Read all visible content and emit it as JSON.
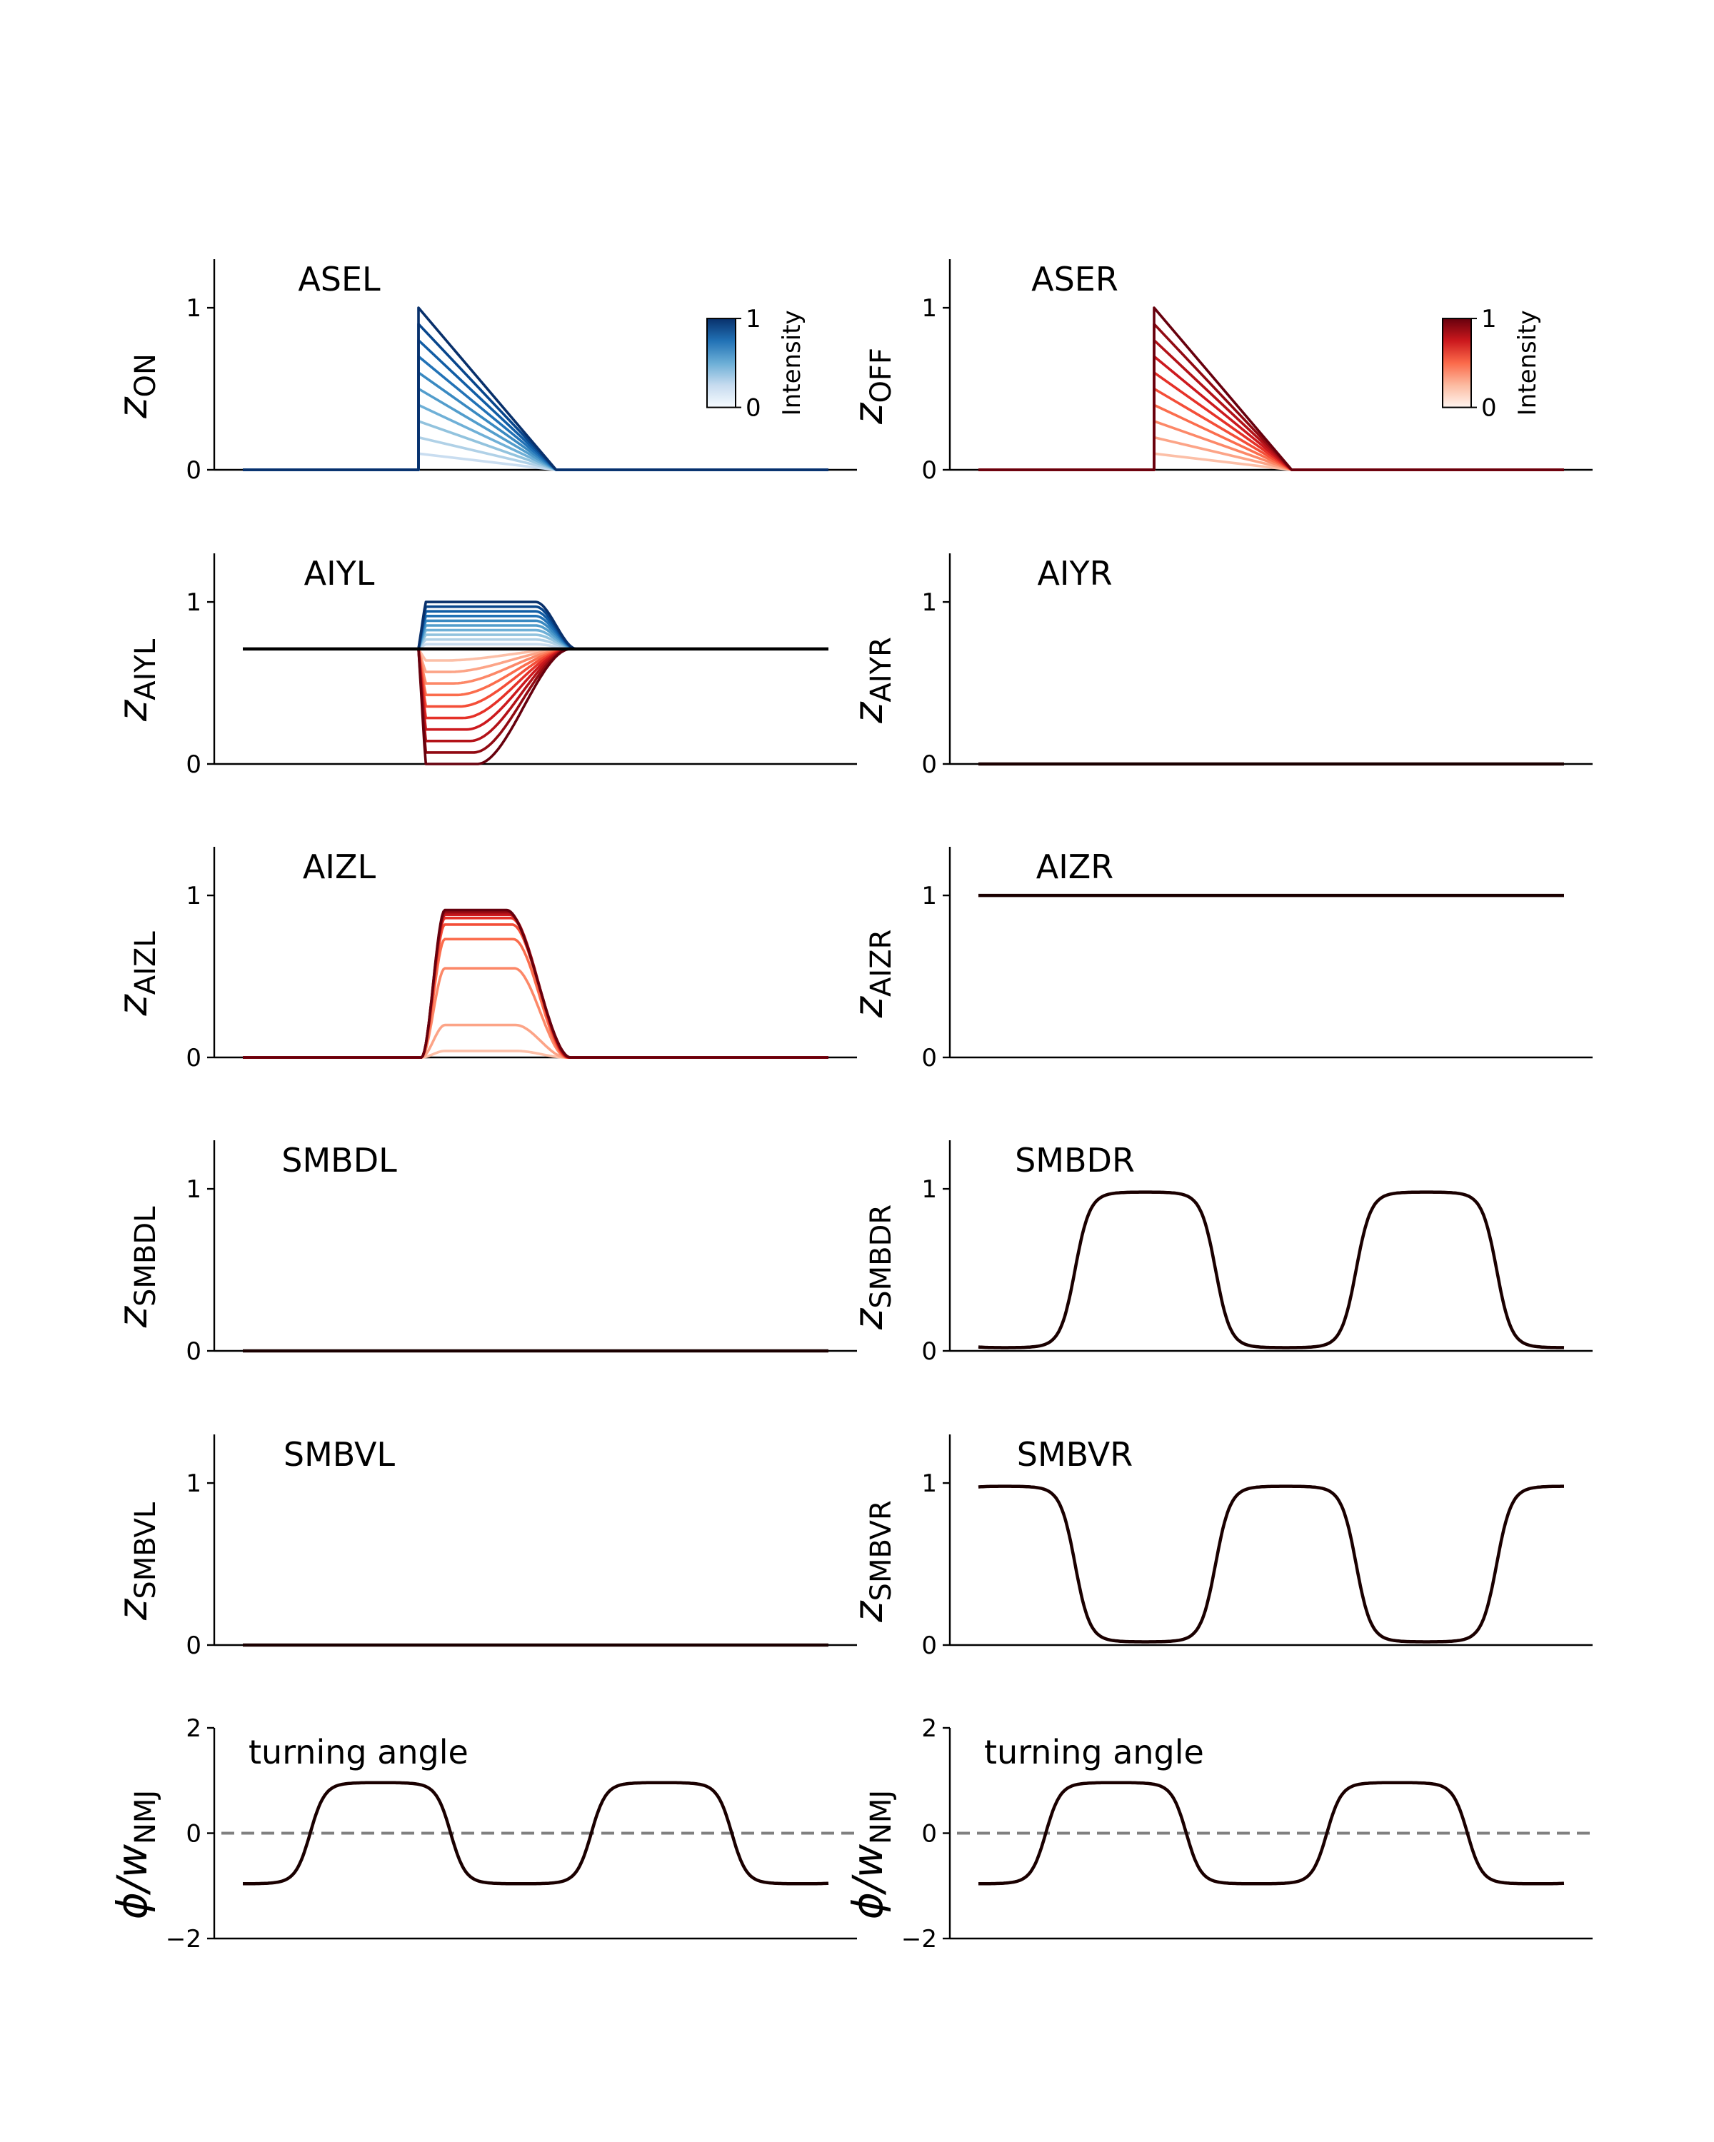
{
  "chart_data": [
    {
      "id": "asel",
      "type": "line",
      "title": "ASEL",
      "ylabel_sym": "z",
      "ylabel_sub": "ON",
      "ylim": [
        0,
        1.3
      ],
      "yticks": [
        "0",
        "1"
      ],
      "xlim": [
        0,
        100
      ],
      "grid": false,
      "colorbar": {
        "colormap": "Blues",
        "label": "Intensity",
        "min": "0",
        "max": "1"
      },
      "family": {
        "shape": "ramp",
        "colormap": "Blues",
        "levels": [
          0.1,
          0.2,
          0.3,
          0.4,
          0.5,
          0.6,
          0.7,
          0.8,
          0.9,
          1.0
        ],
        "onset": 30,
        "end": 53.5,
        "baseline": 0,
        "note": "peak at onset, linear decay to 0"
      }
    },
    {
      "id": "aser",
      "type": "line",
      "title": "ASER",
      "ylabel_sym": "z",
      "ylabel_sub": "OFF",
      "ylim": [
        0,
        1.3
      ],
      "yticks": [
        "0",
        "1"
      ],
      "xlim": [
        0,
        100
      ],
      "grid": false,
      "colorbar": {
        "colormap": "Reds",
        "label": "Intensity",
        "min": "0",
        "max": "1"
      },
      "family": {
        "shape": "ramp",
        "colormap": "Reds",
        "levels": [
          0.1,
          0.2,
          0.3,
          0.4,
          0.5,
          0.6,
          0.7,
          0.8,
          0.9,
          1.0
        ],
        "onset": 30,
        "end": 53.5,
        "baseline": 0
      }
    },
    {
      "id": "aiyl",
      "type": "line",
      "title": "AIYL",
      "ylabel_sym": "z",
      "ylabel_sub": "AIYL",
      "ylim": [
        0,
        1.3
      ],
      "yticks": [
        "0",
        "1"
      ],
      "xlim": [
        0,
        100
      ],
      "grid": false,
      "baseline_line": {
        "y": 0.71,
        "color": "#000000"
      },
      "families": [
        {
          "shape": "pulse",
          "colormap": "Blues",
          "levels": [
            0.1,
            0.2,
            0.3,
            0.4,
            0.5,
            0.6,
            0.7,
            0.8,
            0.9,
            1.0
          ],
          "baseline": 0.71,
          "target": 1.0,
          "onset": 30,
          "decay_start": 50,
          "decay_end": 57
        },
        {
          "shape": "pulse",
          "colormap": "Reds",
          "levels": [
            0.1,
            0.2,
            0.3,
            0.4,
            0.5,
            0.6,
            0.7,
            0.8,
            0.9,
            1.0
          ],
          "baseline": 0.71,
          "target": 0.0,
          "onset": 30,
          "decay_start": 40,
          "decay_end": 56
        }
      ]
    },
    {
      "id": "aiyr",
      "type": "line",
      "title": "AIYR",
      "ylabel_sym": "z",
      "ylabel_sub": "AIYR",
      "ylim": [
        0,
        1.3
      ],
      "yticks": [
        "0",
        "1"
      ],
      "xlim": [
        0,
        100
      ],
      "grid": false,
      "series": [
        {
          "x": [
            5,
            100
          ],
          "y": [
            0,
            0
          ],
          "color": "#1a0000"
        }
      ]
    },
    {
      "id": "aizl",
      "type": "line",
      "title": "AIZL",
      "ylabel_sym": "z",
      "ylabel_sub": "AIZL",
      "ylim": [
        0,
        1.3
      ],
      "yticks": [
        "0",
        "1"
      ],
      "xlim": [
        0,
        100
      ],
      "grid": false,
      "family": {
        "shape": "bump",
        "colormap": "Reds",
        "levels": [
          0.1,
          0.2,
          0.3,
          0.4,
          0.5,
          0.6,
          0.7,
          0.8,
          0.9,
          1.0
        ],
        "peaks": [
          0.04,
          0.2,
          0.55,
          0.73,
          0.82,
          0.86,
          0.88,
          0.89,
          0.9,
          0.91
        ],
        "rise_start": 30.5,
        "rise_end": 34.5,
        "fall_start": 45,
        "fall_end": 56,
        "baseline": 0
      }
    },
    {
      "id": "aizr",
      "type": "line",
      "title": "AIZR",
      "ylabel_sym": "z",
      "ylabel_sub": "AIZR",
      "ylim": [
        0,
        1.3
      ],
      "yticks": [
        "0",
        "1"
      ],
      "xlim": [
        0,
        100
      ],
      "grid": false,
      "series": [
        {
          "x": [
            5,
            100
          ],
          "y": [
            1,
            1
          ],
          "color": "#1a0000"
        }
      ]
    },
    {
      "id": "smbdl",
      "type": "line",
      "title": "SMBDL",
      "ylabel_sym": "z",
      "ylabel_sub": "SMBDL",
      "ylim": [
        0,
        1.3
      ],
      "yticks": [
        "0",
        "1"
      ],
      "xlim": [
        0,
        100
      ],
      "grid": false,
      "series": [
        {
          "x": [
            5,
            100
          ],
          "y": [
            0,
            0
          ],
          "color": "#1a0000"
        }
      ]
    },
    {
      "id": "smbdr",
      "type": "line",
      "title": "SMBDR",
      "ylabel_sym": "z",
      "ylabel_sub": "SMBDR",
      "ylim": [
        0,
        1.3
      ],
      "yticks": [
        "0",
        "1"
      ],
      "xlim": [
        0,
        100
      ],
      "grid": false,
      "series": [
        {
          "wave": {
            "low": 0.02,
            "high": 0.98,
            "period": 48,
            "phase_peak": 28.5,
            "sharpness": 3
          },
          "color": "#1a0000"
        }
      ]
    },
    {
      "id": "smbvl",
      "type": "line",
      "title": "SMBVL",
      "ylabel_sym": "z",
      "ylabel_sub": "SMBVL",
      "ylim": [
        0,
        1.3
      ],
      "yticks": [
        "0",
        "1"
      ],
      "xlim": [
        0,
        100
      ],
      "grid": false,
      "series": [
        {
          "x": [
            5,
            100
          ],
          "y": [
            0,
            0
          ],
          "color": "#1a0000"
        }
      ]
    },
    {
      "id": "smbvr",
      "type": "line",
      "title": "SMBVR",
      "ylabel_sym": "z",
      "ylabel_sub": "SMBVR",
      "ylim": [
        0,
        1.3
      ],
      "yticks": [
        "0",
        "1"
      ],
      "xlim": [
        0,
        100
      ],
      "grid": false,
      "series": [
        {
          "wave": {
            "low": 0.02,
            "high": 0.98,
            "period": 48,
            "phase_peak": 52.5,
            "sharpness": 3
          },
          "color": "#1a0000"
        }
      ]
    },
    {
      "id": "turn_left",
      "type": "line",
      "title": "turning angle",
      "ylabel_sym": "ϕ/w",
      "ylabel_sub": "NMJ",
      "ylim": [
        -2,
        2
      ],
      "yticks": [
        "−2",
        "0",
        "2"
      ],
      "xlim": [
        0,
        100
      ],
      "grid": false,
      "zero_line": {
        "y": 0,
        "color": "#808080",
        "dashed": true
      },
      "series": [
        {
          "wave": {
            "low": -0.96,
            "high": 0.96,
            "period": 48,
            "phase_peak": 23.5,
            "sharpness": 3
          },
          "color": "#1a0000"
        }
      ]
    },
    {
      "id": "turn_right",
      "type": "line",
      "title": "turning angle",
      "ylabel_sym": "ϕ/w",
      "ylabel_sub": "NMJ",
      "ylim": [
        -2,
        2
      ],
      "yticks": [
        "−2",
        "0",
        "2"
      ],
      "xlim": [
        0,
        100
      ],
      "grid": false,
      "zero_line": {
        "y": 0,
        "color": "#808080",
        "dashed": true
      },
      "series": [
        {
          "wave": {
            "low": -0.96,
            "high": 0.96,
            "period": 48,
            "phase_peak": 23.5,
            "sharpness": 3
          },
          "color": "#1a0000"
        }
      ]
    }
  ]
}
